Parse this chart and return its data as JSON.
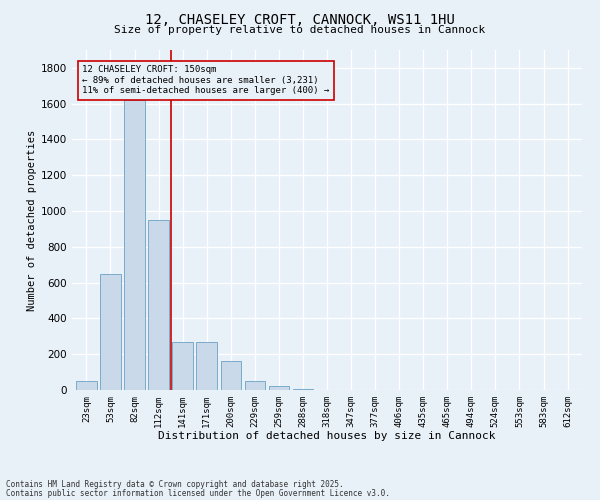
{
  "title1": "12, CHASELEY CROFT, CANNOCK, WS11 1HU",
  "title2": "Size of property relative to detached houses in Cannock",
  "xlabel": "Distribution of detached houses by size in Cannock",
  "ylabel": "Number of detached properties",
  "bar_labels": [
    "23sqm",
    "53sqm",
    "82sqm",
    "112sqm",
    "141sqm",
    "171sqm",
    "200sqm",
    "229sqm",
    "259sqm",
    "288sqm",
    "318sqm",
    "347sqm",
    "377sqm",
    "406sqm",
    "435sqm",
    "465sqm",
    "494sqm",
    "524sqm",
    "553sqm",
    "583sqm",
    "612sqm"
  ],
  "bar_values": [
    50,
    650,
    1620,
    950,
    270,
    270,
    160,
    50,
    20,
    5,
    2,
    1,
    0,
    0,
    0,
    0,
    0,
    0,
    0,
    0,
    2
  ],
  "bar_color": "#c9d9ea",
  "bar_edge_color": "#7aaacb",
  "vline_color": "#cc0000",
  "annotation_text": "12 CHASELEY CROFT: 150sqm\n← 89% of detached houses are smaller (3,231)\n11% of semi-detached houses are larger (400) →",
  "annotation_box_color": "#cc0000",
  "ylim": [
    0,
    1900
  ],
  "yticks": [
    0,
    200,
    400,
    600,
    800,
    1000,
    1200,
    1400,
    1600,
    1800
  ],
  "background_color": "#e8f0f8",
  "grid_color": "#ffffff",
  "footer1": "Contains HM Land Registry data © Crown copyright and database right 2025.",
  "footer2": "Contains public sector information licensed under the Open Government Licence v3.0."
}
